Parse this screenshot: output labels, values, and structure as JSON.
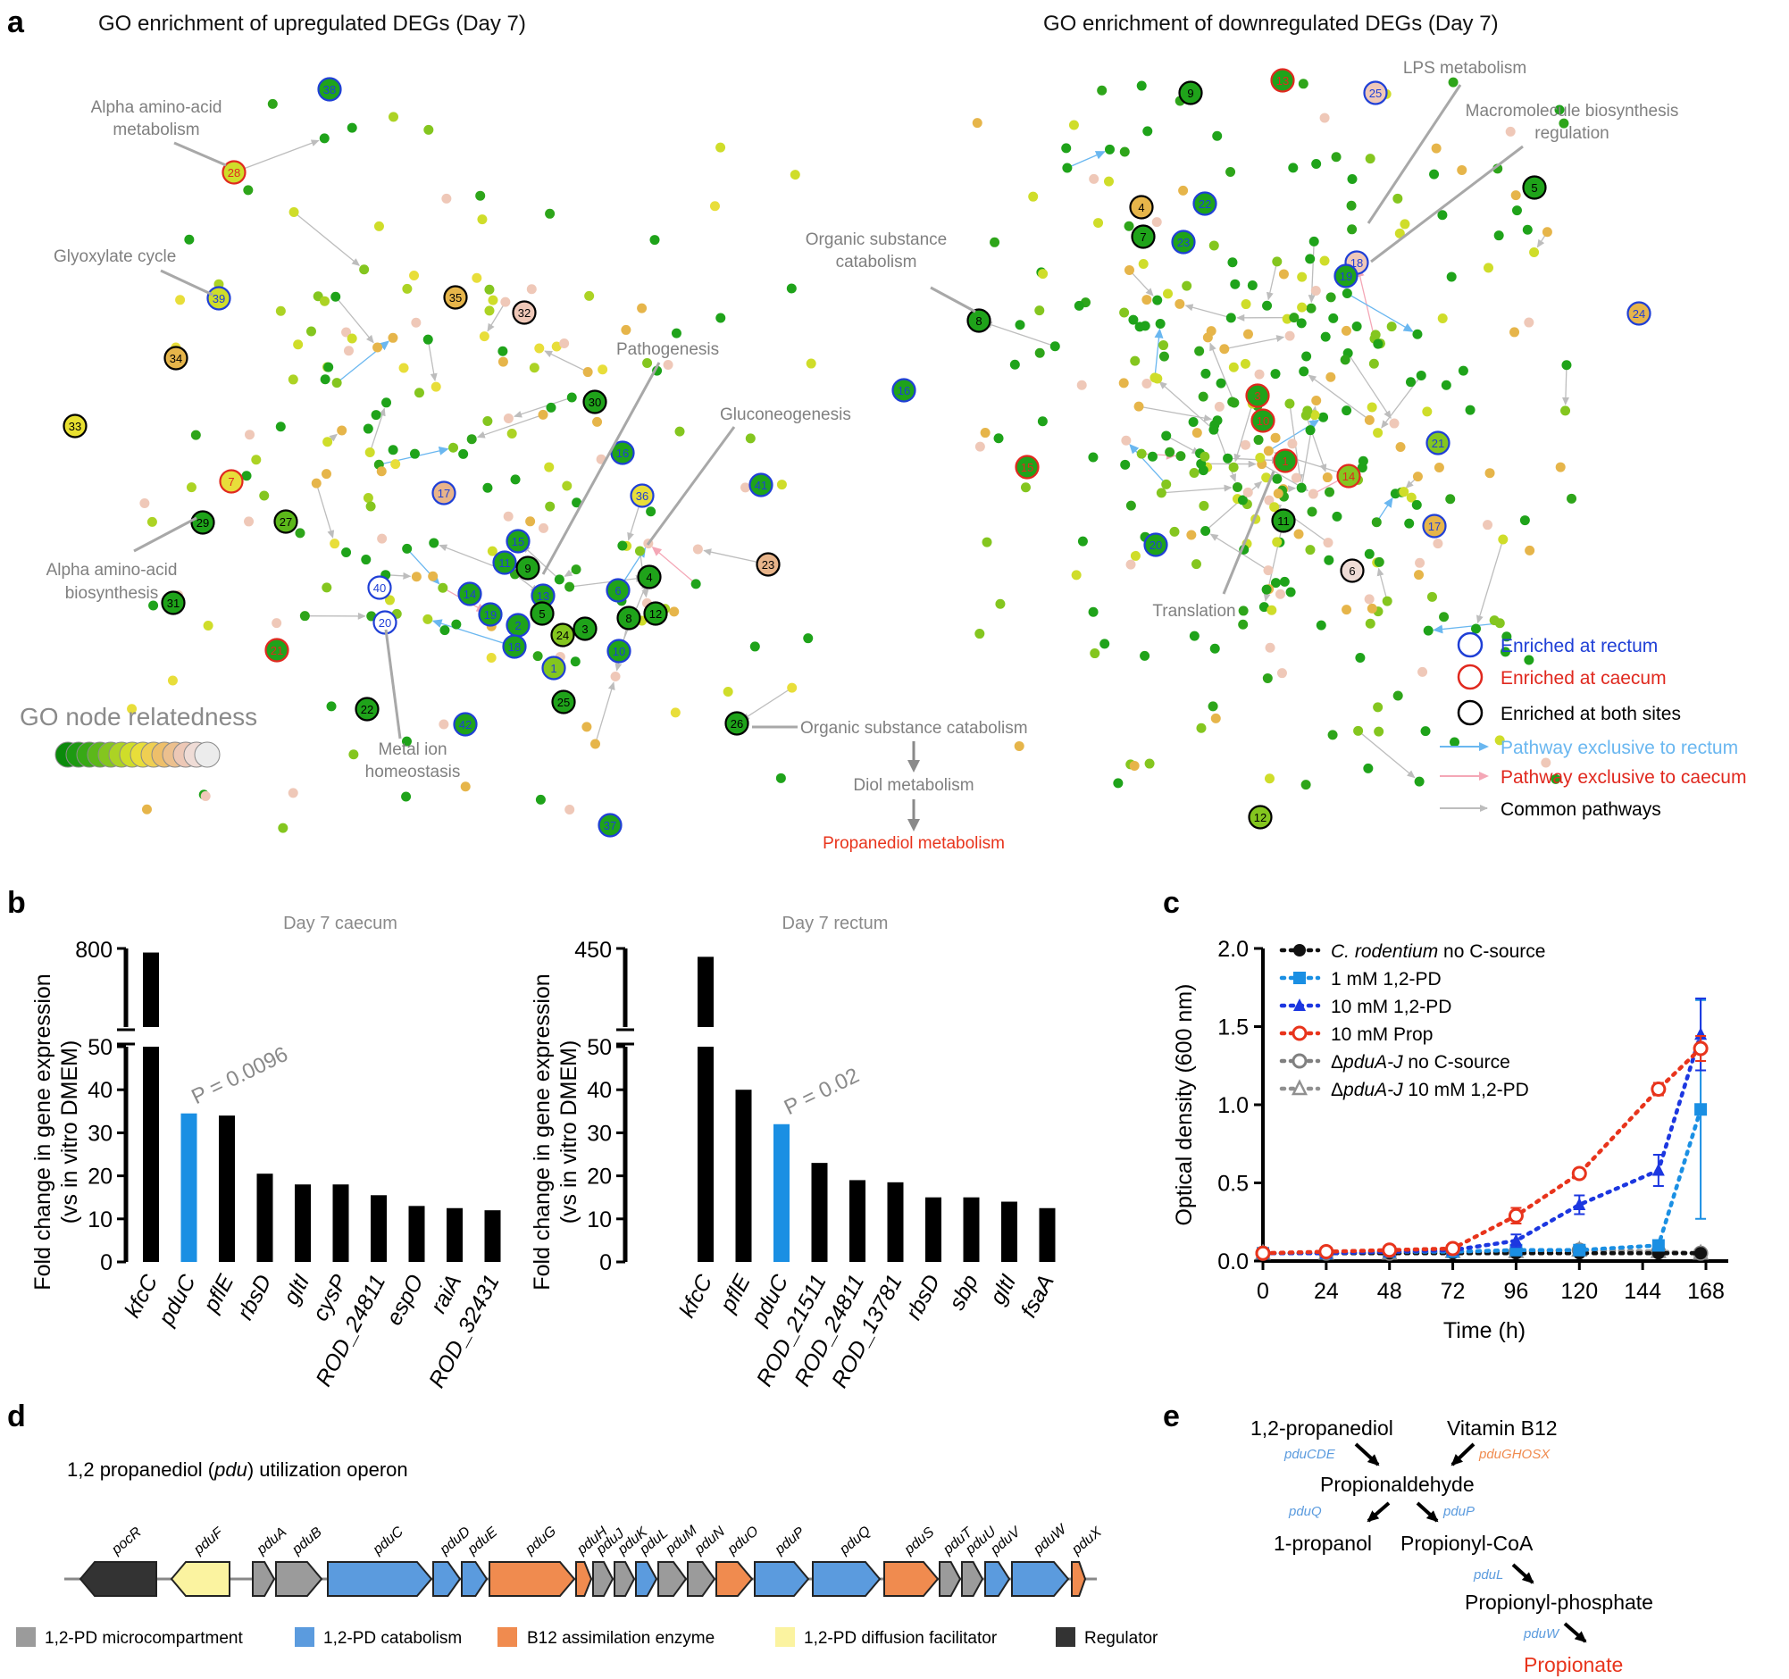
{
  "panels": {
    "a": "a",
    "b": "b",
    "c": "c",
    "d": "d",
    "e": "e"
  },
  "colors": {
    "rectum": "#1f3fd6",
    "caecum": "#e0291f",
    "both": "#000000",
    "rectum_path": "#6ab7f0",
    "caecum_path": "#f4a7b6",
    "common_path": "#bdbdbd",
    "highlight_bar": "#1a8fe3",
    "bar": "#000000"
  },
  "panel_a": {
    "left_title": "GO enrichment of upregulated DEGs (Day 7)",
    "right_title": "GO enrichment of downregulated DEGs (Day 7)",
    "left_annotations": {
      "alpha_metab_1": "Alpha amino-acid",
      "alpha_metab_2": "metabolism",
      "glyoxylate": "Glyoxylate cycle",
      "pathogenesis": "Pathogenesis",
      "gluconeogenesis": "Gluconeogenesis",
      "alpha_bio_1": "Alpha amino-acid",
      "alpha_bio_2": "biosynthesis",
      "metal_1": "Metal ion",
      "metal_2": "homeostasis",
      "org_cat": "Organic substance catabolism",
      "diol": "Diol metabolism",
      "propanediol": "Propanediol metabolism"
    },
    "right_annotations": {
      "lps": "LPS metabolism",
      "macro_1": "Macromolecule biosynthesis",
      "macro_2": "regulation",
      "org_cat_1": "Organic substance",
      "org_cat_2": "catabolism",
      "translation": "Translation"
    },
    "relatedness_label": "GO node relatedness",
    "relatedness_gradient": [
      "#0b8a0b",
      "#1e9a12",
      "#38a916",
      "#5cb81a",
      "#84c61f",
      "#acd324",
      "#cfdd2a",
      "#e8de3a",
      "#efcf52",
      "#eebf6a",
      "#ecc08e",
      "#edc8b6",
      "#efdcd6",
      "#ececec"
    ],
    "legend": {
      "rectum": "Enriched at rectum",
      "caecum": "Enriched at caecum",
      "both": "Enriched at both sites",
      "path_rectum": "Pathway exclusive to rectum",
      "path_caecum": "Pathway exclusive to caecum",
      "path_common": "Common pathways"
    },
    "left_numbered_nodes": [
      {
        "n": "38",
        "ring": "rectum",
        "fill": "#1fa31a"
      },
      {
        "n": "28",
        "ring": "caecum",
        "fill": "#cfdd2a"
      },
      {
        "n": "39",
        "ring": "rectum",
        "fill": "#cfdd2a"
      },
      {
        "n": "35",
        "ring": "both",
        "fill": "#e6b54a"
      },
      {
        "n": "32",
        "ring": "both",
        "fill": "#efc8b8"
      },
      {
        "n": "34",
        "ring": "both",
        "fill": "#e6b54a"
      },
      {
        "n": "33",
        "ring": "both",
        "fill": "#e8e030"
      },
      {
        "n": "30",
        "ring": "both",
        "fill": "#1fa31a"
      },
      {
        "n": "7",
        "ring": "caecum",
        "fill": "#e8de3a"
      },
      {
        "n": "29",
        "ring": "both",
        "fill": "#1fa31a"
      },
      {
        "n": "27",
        "ring": "both",
        "fill": "#5cb81a"
      },
      {
        "n": "17",
        "ring": "rectum",
        "fill": "#e8b48a"
      },
      {
        "n": "16",
        "ring": "rectum",
        "fill": "#1fa31a"
      },
      {
        "n": "36",
        "ring": "rectum",
        "fill": "#e8de3a"
      },
      {
        "n": "41",
        "ring": "rectum",
        "fill": "#1fa31a"
      },
      {
        "n": "15",
        "ring": "rectum",
        "fill": "#1fa31a"
      },
      {
        "n": "11",
        "ring": "rectum",
        "fill": "#1fa31a"
      },
      {
        "n": "9",
        "ring": "both",
        "fill": "#1fa31a"
      },
      {
        "n": "23",
        "ring": "both",
        "fill": "#e8b48a"
      },
      {
        "n": "31",
        "ring": "both",
        "fill": "#1fa31a"
      },
      {
        "n": "40",
        "ring": "rectum",
        "fill": "#ffffff"
      },
      {
        "n": "20",
        "ring": "rectum",
        "fill": "#ffffff"
      },
      {
        "n": "14",
        "ring": "rectum",
        "fill": "#1fa31a"
      },
      {
        "n": "19",
        "ring": "rectum",
        "fill": "#1fa31a"
      },
      {
        "n": "13",
        "ring": "rectum",
        "fill": "#1fa31a"
      },
      {
        "n": "6",
        "ring": "rectum",
        "fill": "#1fa31a"
      },
      {
        "n": "4",
        "ring": "both",
        "fill": "#1fa31a"
      },
      {
        "n": "2",
        "ring": "rectum",
        "fill": "#1fa31a"
      },
      {
        "n": "5",
        "ring": "both",
        "fill": "#1fa31a"
      },
      {
        "n": "18",
        "ring": "rectum",
        "fill": "#1fa31a"
      },
      {
        "n": "24",
        "ring": "both",
        "fill": "#84c61f"
      },
      {
        "n": "3",
        "ring": "both",
        "fill": "#1fa31a"
      },
      {
        "n": "8",
        "ring": "both",
        "fill": "#1fa31a"
      },
      {
        "n": "12",
        "ring": "both",
        "fill": "#1fa31a"
      },
      {
        "n": "10",
        "ring": "rectum",
        "fill": "#1fa31a"
      },
      {
        "n": "1",
        "ring": "rectum",
        "fill": "#84c61f"
      },
      {
        "n": "21",
        "ring": "caecum",
        "fill": "#1fa31a"
      },
      {
        "n": "22",
        "ring": "both",
        "fill": "#1fa31a"
      },
      {
        "n": "42",
        "ring": "rectum",
        "fill": "#1fa31a"
      },
      {
        "n": "25",
        "ring": "both",
        "fill": "#1fa31a"
      },
      {
        "n": "26",
        "ring": "both",
        "fill": "#1fa31a"
      },
      {
        "n": "37",
        "ring": "rectum",
        "fill": "#1fa31a"
      }
    ],
    "right_numbered_nodes": [
      {
        "n": "9",
        "ring": "both",
        "fill": "#1fa31a"
      },
      {
        "n": "13",
        "ring": "caecum",
        "fill": "#1fa31a"
      },
      {
        "n": "25",
        "ring": "rectum",
        "fill": "#efc8b8"
      },
      {
        "n": "5",
        "ring": "both",
        "fill": "#1fa31a"
      },
      {
        "n": "4",
        "ring": "both",
        "fill": "#e6b54a"
      },
      {
        "n": "22",
        "ring": "rectum",
        "fill": "#1fa31a"
      },
      {
        "n": "7",
        "ring": "both",
        "fill": "#1fa31a"
      },
      {
        "n": "23",
        "ring": "rectum",
        "fill": "#1fa31a"
      },
      {
        "n": "18",
        "ring": "rectum",
        "fill": "#efc8b8"
      },
      {
        "n": "19",
        "ring": "rectum",
        "fill": "#1fa31a"
      },
      {
        "n": "8",
        "ring": "both",
        "fill": "#1fa31a"
      },
      {
        "n": "16",
        "ring": "rectum",
        "fill": "#1fa31a"
      },
      {
        "n": "24",
        "ring": "rectum",
        "fill": "#e6b54a"
      },
      {
        "n": "3",
        "ring": "caecum",
        "fill": "#1fa31a"
      },
      {
        "n": "10",
        "ring": "caecum",
        "fill": "#1fa31a"
      },
      {
        "n": "15",
        "ring": "caecum",
        "fill": "#1fa31a"
      },
      {
        "n": "1",
        "ring": "caecum",
        "fill": "#1fa31a"
      },
      {
        "n": "14",
        "ring": "caecum",
        "fill": "#84c61f"
      },
      {
        "n": "21",
        "ring": "rectum",
        "fill": "#84c61f"
      },
      {
        "n": "11",
        "ring": "both",
        "fill": "#1fa31a"
      },
      {
        "n": "17",
        "ring": "rectum",
        "fill": "#e6b54a"
      },
      {
        "n": "20",
        "ring": "rectum",
        "fill": "#1fa31a"
      },
      {
        "n": "6",
        "ring": "both",
        "fill": "#efdcd6"
      },
      {
        "n": "12",
        "ring": "both",
        "fill": "#84c61f"
      }
    ]
  },
  "chart_data": [
    {
      "type": "bar",
      "title": "Day 7 caecum",
      "ylabel_line1": "Fold change in gene expression",
      "ylabel_line2": "(vs in vitro DMEM)",
      "categories": [
        "kfcC",
        "pduC",
        "pflE",
        "rbsD",
        "gltI",
        "cysP",
        "ROD_24811",
        "espO",
        "raiA",
        "ROD_32431"
      ],
      "values": [
        770,
        34.5,
        34,
        20.5,
        18,
        18,
        15.5,
        13,
        12.5,
        12
      ],
      "highlight": "pduC",
      "p_value": "P = 0.0096",
      "axis_break": true,
      "ylim_lower": [
        0,
        50
      ],
      "upper_tick": "800",
      "yticks": [
        "0",
        "10",
        "20",
        "30",
        "40",
        "50"
      ]
    },
    {
      "type": "bar",
      "title": "Day 7 rectum",
      "ylabel_line1": "Fold change in gene expression",
      "ylabel_line2": "(vs in vitro DMEM)",
      "categories": [
        "kfcC",
        "pflE",
        "pduC",
        "ROD_21511",
        "ROD_24811",
        "ROD_13781",
        "rbsD",
        "sbp",
        "gltI",
        "fsaA"
      ],
      "values": [
        420,
        40,
        32,
        23,
        19,
        18.5,
        15,
        15,
        14,
        12.5
      ],
      "highlight": "pduC",
      "p_value": "P = 0.02",
      "axis_break": true,
      "ylim_lower": [
        0,
        50
      ],
      "upper_tick": "450",
      "yticks": [
        "0",
        "10",
        "20",
        "30",
        "40",
        "50"
      ]
    },
    {
      "type": "line",
      "xlabel": "Time (h)",
      "ylabel": "Optical density (600 nm)",
      "xlim": [
        0,
        168
      ],
      "ylim": [
        0,
        2.0
      ],
      "xticks": [
        "0",
        "24",
        "48",
        "72",
        "96",
        "120",
        "144",
        "168"
      ],
      "yticks": [
        "0.0",
        "0.5",
        "1.0",
        "1.5",
        "2.0"
      ],
      "series": [
        {
          "name_prefix": "",
          "name_italic": "C. rodentium",
          "name_suffix": " no C-source",
          "color": "#111111",
          "marker": "circle",
          "x": [
            0,
            24,
            48,
            72,
            96,
            120,
            150,
            166
          ],
          "y": [
            0.05,
            0.05,
            0.05,
            0.05,
            0.05,
            0.05,
            0.05,
            0.05
          ]
        },
        {
          "name_prefix": "1 mM 1,2-PD",
          "name_italic": "",
          "name_suffix": "",
          "color": "#1a8fe3",
          "marker": "square",
          "x": [
            0,
            24,
            48,
            72,
            96,
            120,
            150,
            166
          ],
          "y": [
            0.05,
            0.05,
            0.06,
            0.06,
            0.07,
            0.07,
            0.1,
            0.97
          ],
          "err": [
            0,
            0,
            0,
            0,
            0,
            0,
            0.03,
            0.7
          ]
        },
        {
          "name_prefix": "10 mM 1,2-PD",
          "name_italic": "",
          "name_suffix": "",
          "color": "#1c37e0",
          "marker": "triangle",
          "x": [
            0,
            24,
            48,
            72,
            96,
            120,
            150,
            166
          ],
          "y": [
            0.05,
            0.05,
            0.06,
            0.07,
            0.13,
            0.36,
            0.58,
            1.45
          ],
          "err": [
            0,
            0,
            0,
            0,
            0.04,
            0.06,
            0.1,
            0.23
          ]
        },
        {
          "name_prefix": "10 mM Prop",
          "name_italic": "",
          "name_suffix": "",
          "color": "#e8341c",
          "marker": "open-circle",
          "x": [
            0,
            24,
            48,
            72,
            96,
            120,
            150,
            166
          ],
          "y": [
            0.05,
            0.06,
            0.07,
            0.08,
            0.29,
            0.56,
            1.1,
            1.36
          ],
          "err": [
            0,
            0,
            0,
            0,
            0.05,
            0.03,
            0.04,
            0.08
          ]
        },
        {
          "name_prefix": "Δ",
          "name_italic": "pduA-J",
          "name_suffix": " no C-source",
          "color": "#808080",
          "marker": "open-circle",
          "x": [
            0,
            24,
            48,
            72,
            96,
            120,
            150,
            166
          ],
          "y": [
            0.05,
            0.05,
            0.05,
            0.06,
            0.06,
            0.07,
            0.06,
            0.05
          ]
        },
        {
          "name_prefix": "Δ",
          "name_italic": "pduA-J",
          "name_suffix": " 10 mM 1,2-PD",
          "color": "#909090",
          "marker": "open-triangle",
          "x": [
            0,
            24,
            48,
            72,
            96,
            120,
            150,
            166
          ],
          "y": [
            0.05,
            0.05,
            0.05,
            0.06,
            0.06,
            0.07,
            0.06,
            0.05
          ]
        }
      ]
    }
  ],
  "panel_d": {
    "title_pre": "1,2 propanediol (",
    "title_italic": "pdu",
    "title_post": ") utilization operon",
    "genes": [
      {
        "name": "pocR",
        "cat": "reg",
        "dir": "left"
      },
      {
        "name": "pduF",
        "cat": "diff",
        "dir": "left"
      },
      {
        "name": "pduA",
        "cat": "mcp",
        "dir": "right"
      },
      {
        "name": "pduB",
        "cat": "mcp",
        "dir": "right"
      },
      {
        "name": "pduC",
        "cat": "cat",
        "dir": "right"
      },
      {
        "name": "pduD",
        "cat": "cat",
        "dir": "right"
      },
      {
        "name": "pduE",
        "cat": "cat",
        "dir": "right"
      },
      {
        "name": "pduG",
        "cat": "b12",
        "dir": "right"
      },
      {
        "name": "pduH",
        "cat": "b12",
        "dir": "right"
      },
      {
        "name": "pduJ",
        "cat": "mcp",
        "dir": "right"
      },
      {
        "name": "pduK",
        "cat": "mcp",
        "dir": "right"
      },
      {
        "name": "pduL",
        "cat": "cat",
        "dir": "right"
      },
      {
        "name": "pduM",
        "cat": "mcp",
        "dir": "right"
      },
      {
        "name": "pduN",
        "cat": "mcp",
        "dir": "right"
      },
      {
        "name": "pduO",
        "cat": "b12",
        "dir": "right"
      },
      {
        "name": "pduP",
        "cat": "cat",
        "dir": "right"
      },
      {
        "name": "pduQ",
        "cat": "cat",
        "dir": "right"
      },
      {
        "name": "pduS",
        "cat": "b12",
        "dir": "right"
      },
      {
        "name": "pduT",
        "cat": "mcp",
        "dir": "right"
      },
      {
        "name": "pduU",
        "cat": "mcp",
        "dir": "right"
      },
      {
        "name": "pduV",
        "cat": "cat",
        "dir": "right"
      },
      {
        "name": "pduW",
        "cat": "cat",
        "dir": "right"
      },
      {
        "name": "pduX",
        "cat": "b12",
        "dir": "right"
      }
    ],
    "legend": {
      "mcp": "1,2-PD microcompartment",
      "cat": "1,2-PD catabolism",
      "b12": "B12 assimilation enzyme",
      "diff": "1,2-PD diffusion facilitator",
      "reg": "Regulator"
    },
    "category_colors": {
      "mcp": "#9b9b9b",
      "cat": "#5b9bde",
      "b12": "#f08b4f",
      "diff": "#fbf3a0",
      "reg": "#333333"
    }
  },
  "panel_e": {
    "propanediol": "1,2-propanediol",
    "vitb12": "Vitamin B12",
    "pduCDE": "pduCDE",
    "pduGHOSX": "pduGHOSX",
    "propionaldehyde": "Propionaldehyde",
    "pduQ": "pduQ",
    "pduP": "pduP",
    "propanol": "1-propanol",
    "propionylcoa": "Propionyl-CoA",
    "pduL": "pduL",
    "propionylphosphate": "Propionyl-phosphate",
    "pduW": "pduW",
    "propionate": "Propionate"
  }
}
